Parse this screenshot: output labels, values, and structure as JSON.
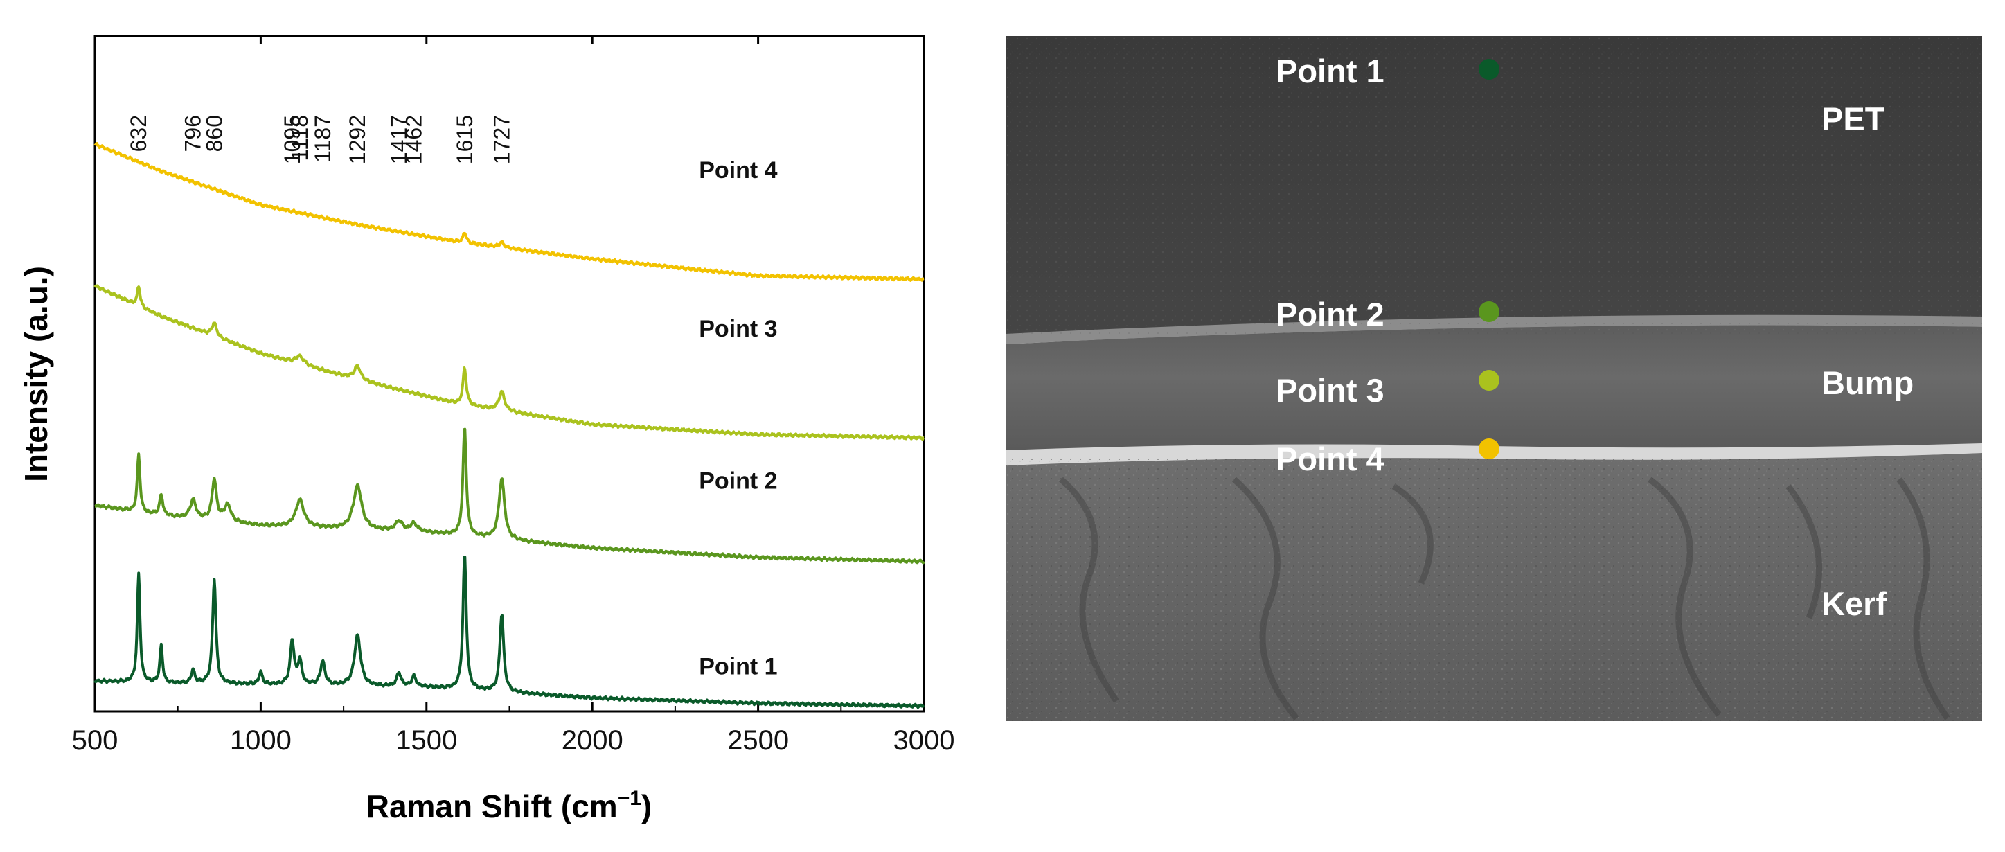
{
  "chart_data": {
    "type": "line",
    "xlabel": "Raman Shift (cm",
    "xlabel_sup": "−1",
    "xlabel_close": ")",
    "ylabel": "Intensity (a.u.)",
    "xlim": [
      500,
      3000
    ],
    "ylim": [
      0,
      10
    ],
    "x_ticks": [
      500,
      1000,
      1500,
      2000,
      2500,
      3000
    ],
    "peak_labels": [
      "632",
      "796",
      "860",
      "1095",
      "1118",
      "1187",
      "1292",
      "1417",
      "1462",
      "1615",
      "1727"
    ],
    "series": [
      {
        "name": "Point 1",
        "color": "#0a5a2a",
        "baseline": [
          [
            500,
            0.45
          ],
          [
            700,
            0.42
          ],
          [
            1000,
            0.4
          ],
          [
            1500,
            0.36
          ],
          [
            2000,
            0.2
          ],
          [
            2500,
            0.12
          ],
          [
            3000,
            0.08
          ]
        ],
        "peaks": [
          [
            632,
            1.6,
            5
          ],
          [
            700,
            0.55,
            5
          ],
          [
            796,
            0.2,
            6
          ],
          [
            860,
            1.55,
            6
          ],
          [
            1000,
            0.18,
            6
          ],
          [
            1095,
            0.65,
            7
          ],
          [
            1118,
            0.35,
            7
          ],
          [
            1187,
            0.35,
            8
          ],
          [
            1292,
            0.75,
            11
          ],
          [
            1417,
            0.2,
            8
          ],
          [
            1462,
            0.15,
            8
          ],
          [
            1615,
            2.0,
            6
          ],
          [
            1727,
            1.15,
            7
          ]
        ]
      },
      {
        "name": "Point 2",
        "color": "#5a961e",
        "baseline": [
          [
            500,
            3.05
          ],
          [
            700,
            2.9
          ],
          [
            1000,
            2.75
          ],
          [
            1500,
            2.65
          ],
          [
            2000,
            2.42
          ],
          [
            2500,
            2.28
          ],
          [
            3000,
            2.22
          ]
        ],
        "peaks": [
          [
            632,
            0.85,
            5
          ],
          [
            700,
            0.3,
            6
          ],
          [
            796,
            0.28,
            10
          ],
          [
            860,
            0.6,
            8
          ],
          [
            900,
            0.25,
            12
          ],
          [
            1118,
            0.4,
            15
          ],
          [
            1292,
            0.65,
            15
          ],
          [
            1417,
            0.15,
            12
          ],
          [
            1462,
            0.12,
            12
          ],
          [
            1615,
            1.6,
            6
          ],
          [
            1727,
            0.9,
            10
          ]
        ]
      },
      {
        "name": "Point 3",
        "color": "#aac21e",
        "baseline": [
          [
            500,
            6.3
          ],
          [
            700,
            5.85
          ],
          [
            1000,
            5.3
          ],
          [
            1300,
            4.9
          ],
          [
            1600,
            4.55
          ],
          [
            2000,
            4.25
          ],
          [
            2500,
            4.1
          ],
          [
            3000,
            4.05
          ]
        ],
        "peaks": [
          [
            632,
            0.3,
            5
          ],
          [
            860,
            0.2,
            8
          ],
          [
            1118,
            0.12,
            15
          ],
          [
            1292,
            0.2,
            12
          ],
          [
            1615,
            0.55,
            6
          ],
          [
            1727,
            0.28,
            10
          ]
        ]
      },
      {
        "name": "Point 4",
        "color": "#f2c200",
        "baseline": [
          [
            500,
            8.4
          ],
          [
            700,
            8.0
          ],
          [
            1000,
            7.5
          ],
          [
            1300,
            7.2
          ],
          [
            1600,
            6.95
          ],
          [
            2000,
            6.7
          ],
          [
            2500,
            6.45
          ],
          [
            3000,
            6.4
          ]
        ],
        "peaks": [
          [
            1615,
            0.15,
            6
          ],
          [
            1727,
            0.07,
            10
          ]
        ]
      }
    ]
  },
  "sem": {
    "point_labels": [
      "Point 1",
      "Point 2",
      "Point 3",
      "Point 4"
    ],
    "point_colors": [
      "#0a5a2a",
      "#5a961e",
      "#aac21e",
      "#f2c200"
    ],
    "region_labels": {
      "pet": "PET",
      "bump": "Bump",
      "kerf": "Kerf"
    }
  }
}
